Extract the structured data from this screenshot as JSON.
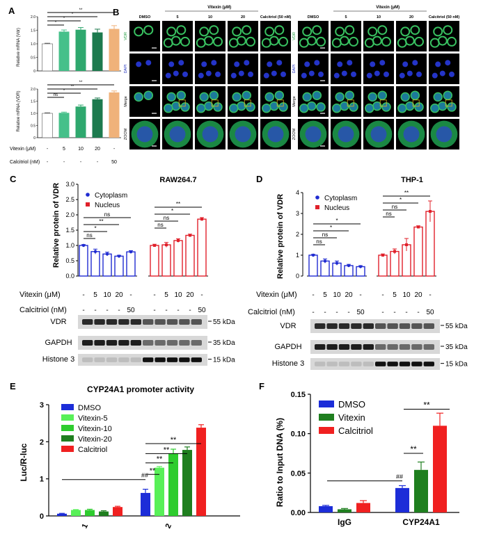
{
  "panels": {
    "A": {
      "letter": "A",
      "top": {
        "ylabel": "Relative mRNA (Vdr)",
        "ylim": [
          0,
          2
        ],
        "ticks": [
          "0",
          "0.5",
          "1.0",
          "1.5",
          "2.0"
        ],
        "values": [
          1.0,
          1.45,
          1.52,
          1.42,
          1.55
        ],
        "errors": [
          0.02,
          0.06,
          0.08,
          0.12,
          0.12
        ],
        "sig": [
          "*",
          "*",
          "*",
          "**"
        ]
      },
      "bottom": {
        "ylabel": "Relative mRNA (VDR)",
        "ylim": [
          0,
          2
        ],
        "ticks": [
          "0",
          "0.5",
          "1.0",
          "1.5",
          "2.0"
        ],
        "values": [
          1.0,
          1.02,
          1.28,
          1.58,
          1.86
        ],
        "errors": [
          0.02,
          0.03,
          0.06,
          0.05,
          0.06
        ],
        "sig": [
          "ns",
          "*",
          "**",
          "**"
        ]
      },
      "colors": [
        "#ffffff",
        "#46c08a",
        "#2fa86e",
        "#1d7a4e",
        "#f0b27a"
      ],
      "vitexin_label": "Vitexin (μM)",
      "vitexin_vals": [
        "-",
        "5",
        "10",
        "20",
        "-"
      ],
      "calcitriol_label": "Calcitriol (nM)",
      "calcitriol_vals": [
        "-",
        "-",
        "-",
        "-",
        "50"
      ]
    },
    "B": {
      "letter": "B",
      "left": {
        "vitexin_header": "Vitexin (μM)",
        "cols": [
          "DMSO",
          "5",
          "10",
          "20",
          "Calcitriol (50 nM)"
        ]
      },
      "right": {
        "vitexin_header": "Vitexin (μM)",
        "cols": [
          "DMSO",
          "5",
          "10",
          "20",
          "Calcitriol (50 nM)"
        ]
      },
      "rows": [
        "VDR",
        "DAPI",
        "Merge",
        "ZOOM"
      ]
    },
    "C": {
      "letter": "C",
      "title": "RAW264.7",
      "ylabel": "Relative protein of VDR",
      "legend": [
        "Cytoplasm",
        "Nucleus"
      ],
      "vitexin_label": "Vitexin (μM)",
      "vitexin_vals": [
        "-",
        "5",
        "10",
        "20",
        "-",
        "-",
        "5",
        "10",
        "20",
        "-"
      ],
      "calcitriol_label": "Calcitriol (nM)",
      "calcitriol_vals": [
        "-",
        "-",
        "-",
        "-",
        "50",
        "-",
        "-",
        "-",
        "-",
        "50"
      ],
      "sig_cyto": [
        "ns",
        "*",
        "**",
        "ns"
      ],
      "sig_nuc": [
        "ns",
        "ns",
        "*",
        "**"
      ],
      "blots": [
        "VDR",
        "GAPDH",
        "Histone 3"
      ],
      "kda": [
        "55 kDa",
        "35 kDa",
        "15 kDa"
      ],
      "ticks": [
        "0.0",
        "0.5",
        "1.0",
        "1.5",
        "2.0",
        "2.5",
        "3.0"
      ]
    },
    "D": {
      "letter": "D",
      "title": "THP-1",
      "ylabel": "Relative protein of VDR",
      "legend": [
        "Cytoplasm",
        "Nucleus"
      ],
      "vitexin_label": "Vitexin (μM)",
      "vitexin_vals": [
        "-",
        "5",
        "10",
        "20",
        "-",
        "-",
        "5",
        "10",
        "20",
        "-"
      ],
      "calcitriol_label": "Calcitriol (nM)",
      "calcitriol_vals": [
        "-",
        "-",
        "-",
        "-",
        "50",
        "-",
        "-",
        "-",
        "-",
        "50"
      ],
      "sig_cyto": [
        "ns",
        "ns",
        "*",
        "*"
      ],
      "sig_nuc": [
        "ns",
        "ns",
        "*",
        "**"
      ],
      "blots": [
        "VDR",
        "GAPDH",
        "Histone 3"
      ],
      "kda": [
        "55 kDa",
        "35 kDa",
        "15 kDa"
      ],
      "ticks": [
        "0",
        "1",
        "2",
        "3",
        "4"
      ]
    },
    "E": {
      "letter": "E",
      "title": "CYP24A1 promoter activity",
      "ylabel": "Luc/R-luc",
      "legend": [
        "DMSO",
        "Vitexin-5",
        "Vitexin-10",
        "Vitexin-20",
        "Calcitriol"
      ],
      "groups": [
        "1",
        "2"
      ],
      "hash": "##",
      "sig": [
        "**",
        "**",
        "**",
        "**"
      ],
      "ticks": [
        "0",
        "1",
        "2",
        "3"
      ]
    },
    "F": {
      "letter": "F",
      "ylabel": "Ratio to Input DNA (%)",
      "legend": [
        "DMSO",
        "Vitexin",
        "Calcitriol"
      ],
      "groups": [
        "IgG",
        "CYP24A1"
      ],
      "hash": "##",
      "sig": [
        "**",
        "**"
      ],
      "ticks": [
        "0.00",
        "0.05",
        "0.10",
        "0.15"
      ]
    }
  },
  "chart_data": [
    {
      "type": "bar",
      "panel": "A-top",
      "ylabel": "Relative mRNA (Vdr)",
      "categories": [
        "DMSO",
        "Vitexin 5",
        "Vitexin 10",
        "Vitexin 20",
        "Calcitriol 50"
      ],
      "values": [
        1.0,
        1.45,
        1.52,
        1.42,
        1.55
      ],
      "ylim": [
        0,
        2
      ]
    },
    {
      "type": "bar",
      "panel": "A-bottom",
      "ylabel": "Relative mRNA (VDR)",
      "categories": [
        "DMSO",
        "Vitexin 5",
        "Vitexin 10",
        "Vitexin 20",
        "Calcitriol 50"
      ],
      "values": [
        1.0,
        1.02,
        1.28,
        1.58,
        1.86
      ],
      "ylim": [
        0,
        2
      ]
    },
    {
      "type": "bar",
      "panel": "C",
      "title": "RAW264.7",
      "ylabel": "Relative protein of VDR",
      "ylim": [
        0,
        3
      ],
      "series": [
        {
          "name": "Cytoplasm",
          "color": "#1f2bd1",
          "values": [
            1.0,
            0.8,
            0.72,
            0.65,
            0.79
          ],
          "errors": [
            0.03,
            0.08,
            0.06,
            0.03,
            0.04
          ]
        },
        {
          "name": "Nucleus",
          "color": "#e0202a",
          "values": [
            1.0,
            1.02,
            1.16,
            1.33,
            1.86
          ],
          "errors": [
            0.04,
            0.08,
            0.06,
            0.04,
            0.05
          ]
        }
      ]
    },
    {
      "type": "bar",
      "panel": "D",
      "title": "THP-1",
      "ylabel": "Relative protein of VDR",
      "ylim": [
        0,
        4
      ],
      "series": [
        {
          "name": "Cytoplasm",
          "color": "#1f2bd1",
          "values": [
            1.0,
            0.72,
            0.62,
            0.5,
            0.45
          ],
          "errors": [
            0.04,
            0.1,
            0.1,
            0.06,
            0.05
          ]
        },
        {
          "name": "Nucleus",
          "color": "#e0202a",
          "values": [
            1.0,
            1.18,
            1.5,
            2.35,
            3.1
          ],
          "errors": [
            0.06,
            0.12,
            0.3,
            0.06,
            0.5
          ]
        }
      ]
    },
    {
      "type": "bar",
      "panel": "E",
      "title": "CYP24A1 promoter activity",
      "ylabel": "Luc/R-luc",
      "categories": [
        "1",
        "2"
      ],
      "ylim": [
        0,
        3
      ],
      "series": [
        {
          "name": "DMSO",
          "color": "#1c2dd8",
          "values": [
            0.06,
            0.62
          ],
          "errors": [
            0.01,
            0.1
          ]
        },
        {
          "name": "Vitexin-5",
          "color": "#58f058",
          "values": [
            0.16,
            1.3
          ],
          "errors": [
            0.01,
            0.03
          ]
        },
        {
          "name": "Vitexin-10",
          "color": "#2ecc2e",
          "values": [
            0.16,
            1.68
          ],
          "errors": [
            0.02,
            0.12
          ]
        },
        {
          "name": "Vitexin-20",
          "color": "#1f7f1f",
          "values": [
            0.12,
            1.78
          ],
          "errors": [
            0.02,
            0.08
          ]
        },
        {
          "name": "Calcitriol",
          "color": "#f02020",
          "values": [
            0.24,
            2.38
          ],
          "errors": [
            0.02,
            0.08
          ]
        }
      ]
    },
    {
      "type": "bar",
      "panel": "F",
      "ylabel": "Ratio to Input DNA (%)",
      "categories": [
        "IgG",
        "CYP24A1"
      ],
      "ylim": [
        0,
        0.15
      ],
      "series": [
        {
          "name": "DMSO",
          "color": "#1c2dd8",
          "values": [
            0.008,
            0.031
          ],
          "errors": [
            0.001,
            0.003
          ]
        },
        {
          "name": "Vitexin",
          "color": "#1f7f1f",
          "values": [
            0.004,
            0.054
          ],
          "errors": [
            0.001,
            0.01
          ]
        },
        {
          "name": "Calcitriol",
          "color": "#f02020",
          "values": [
            0.012,
            0.11
          ],
          "errors": [
            0.003,
            0.016
          ]
        }
      ]
    }
  ]
}
